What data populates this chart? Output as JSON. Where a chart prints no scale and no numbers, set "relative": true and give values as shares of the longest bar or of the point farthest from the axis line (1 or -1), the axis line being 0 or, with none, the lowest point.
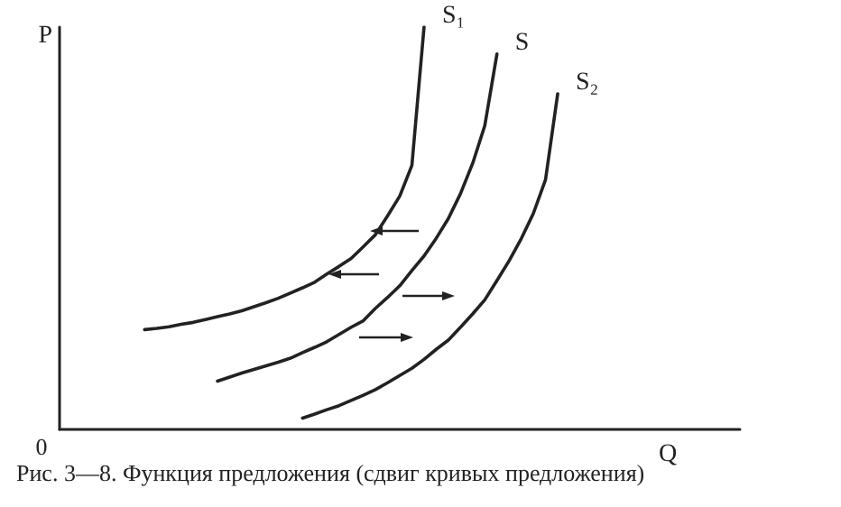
{
  "chart_data": {
    "type": "line",
    "relative": true,
    "xlabel": "Q",
    "ylabel": "P",
    "grid": false,
    "legend": false,
    "marker": "none",
    "line_style": "solid",
    "annotations": [
      "0",
      "Рис. 3—8. Функция предложения (сдвиг кривых предложения)"
    ],
    "categories": [
      null,
      null,
      null,
      null,
      null,
      null,
      null,
      null,
      null,
      null,
      null,
      null,
      null,
      null,
      null,
      null,
      null,
      null,
      null,
      null,
      null,
      null,
      null,
      null,
      null,
      null,
      null,
      null,
      null,
      null,
      null,
      null,
      null,
      null,
      null,
      null,
      null,
      null,
      null,
      null,
      null,
      null,
      null,
      null,
      null,
      null,
      null,
      null,
      null,
      null,
      null,
      null,
      null,
      null,
      null,
      null,
      null
    ],
    "series": [
      {
        "name": "S₁",
        "color": "#222222",
        "values": [
          null,
          null,
          null,
          null,
          null,
          null,
          null,
          0.248,
          0.251,
          0.255,
          0.261,
          0.266,
          0.273,
          0.28,
          0.287,
          0.295,
          0.305,
          0.315,
          0.326,
          0.339,
          0.352,
          0.366,
          0.386,
          0.405,
          0.425,
          0.454,
          0.484,
          0.531,
          0.58,
          0.656,
          1,
          null,
          null,
          null,
          null,
          null,
          null,
          null,
          null,
          null,
          null,
          null,
          null,
          null,
          null,
          null,
          null,
          null,
          null,
          null,
          null,
          null,
          null,
          null,
          null,
          null,
          null
        ]
      },
      {
        "name": "S",
        "color": "#222222",
        "values": [
          null,
          null,
          null,
          null,
          null,
          null,
          null,
          null,
          null,
          null,
          null,
          null,
          null,
          0.12,
          0.13,
          0.14,
          0.149,
          0.158,
          0.167,
          0.177,
          0.191,
          0.204,
          0.218,
          0.236,
          0.254,
          0.27,
          0.301,
          0.328,
          0.357,
          0.395,
          0.431,
          0.475,
          0.524,
          0.586,
          0.661,
          0.755,
          0.933,
          null,
          null,
          null,
          null,
          null,
          null,
          null,
          null,
          null,
          null,
          null,
          null,
          null,
          null,
          null,
          null,
          null,
          null,
          null,
          null
        ]
      },
      {
        "name": "S₂",
        "color": "#222222",
        "values": [
          null,
          null,
          null,
          null,
          null,
          null,
          null,
          null,
          null,
          null,
          null,
          null,
          null,
          null,
          null,
          null,
          null,
          null,
          null,
          null,
          0.028,
          0.038,
          0.049,
          0.059,
          0.072,
          0.085,
          0.099,
          0.116,
          0.134,
          0.152,
          0.174,
          0.199,
          0.222,
          0.254,
          0.287,
          0.322,
          0.37,
          0.419,
          0.474,
          0.537,
          0.621,
          0.834,
          null,
          null,
          null,
          null,
          null,
          null,
          null,
          null,
          null,
          null,
          null,
          null,
          null,
          null,
          null
        ]
      }
    ]
  }
}
